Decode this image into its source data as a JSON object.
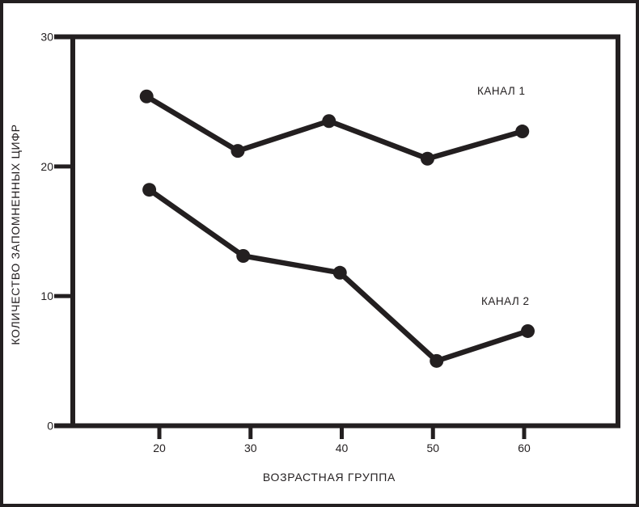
{
  "figure": {
    "background": "#ffffff",
    "ink_color": "#231f20",
    "frame": "thick black border around whole figure"
  },
  "chart_data": {
    "type": "line",
    "title": "",
    "xlabel": "ВОЗРАСТНАЯ ГРУППА",
    "ylabel": "КОЛИЧЕСТВО ЗАПОМНЕННЫХ ЦИФР",
    "xlim": [
      10.5,
      70.3
    ],
    "ylim": [
      0,
      30
    ],
    "x_ticks": [
      20,
      30,
      40,
      50,
      60
    ],
    "y_ticks": [
      0,
      10,
      20,
      30
    ],
    "grid": false,
    "legend": "inline-text-labels",
    "categories": [
      20,
      30,
      40,
      50,
      60
    ],
    "series": [
      {
        "name": "КАНАЛ 1",
        "x": [
          18.6,
          28.6,
          38.6,
          49.4,
          59.8
        ],
        "values": [
          25.4,
          21.2,
          23.5,
          20.6,
          22.7
        ]
      },
      {
        "name": "КАНАЛ 2",
        "x": [
          18.9,
          29.2,
          39.8,
          50.4,
          60.4
        ],
        "values": [
          18.2,
          13.1,
          11.8,
          5.0,
          7.3
        ]
      }
    ]
  }
}
